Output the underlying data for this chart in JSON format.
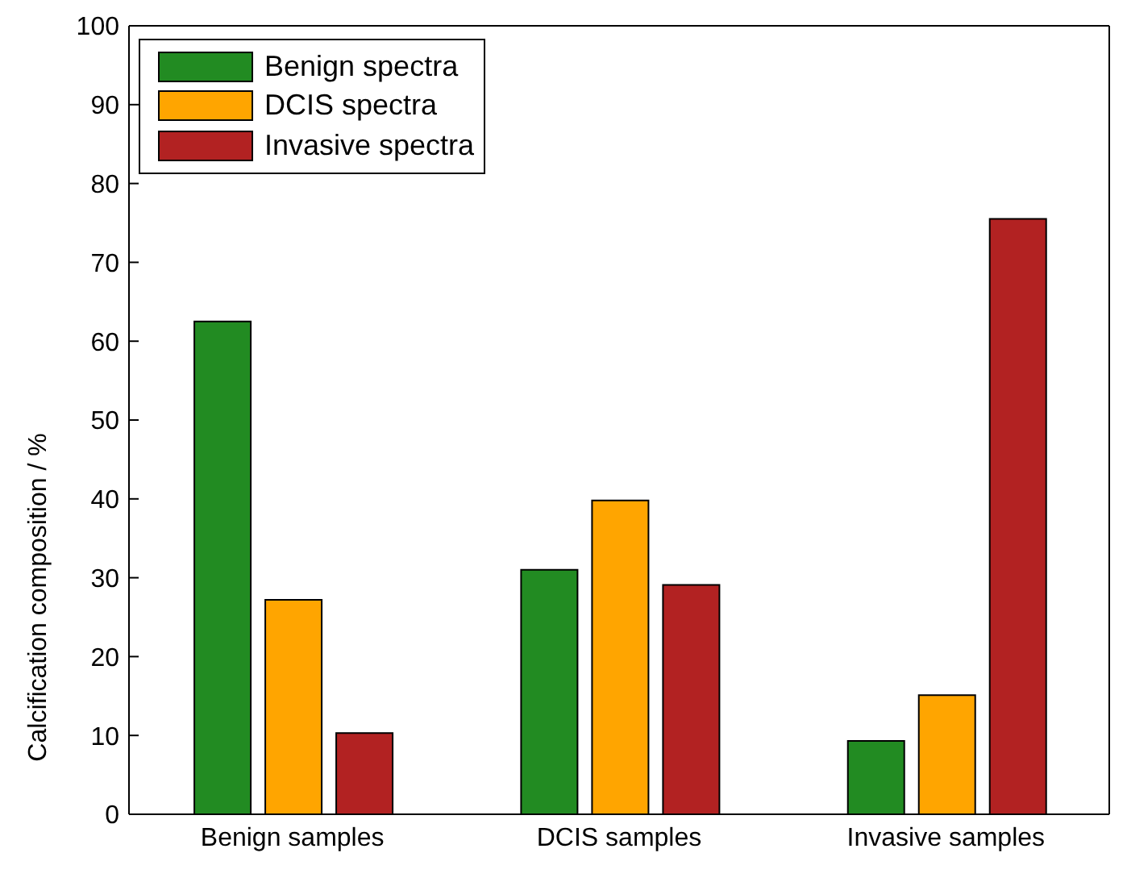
{
  "chart_data": {
    "type": "bar",
    "ylabel": "Calcification composition / %",
    "categories": [
      "Benign samples",
      "DCIS samples",
      "Invasive samples"
    ],
    "series": [
      {
        "name": "Benign spectra",
        "color": "#228b22",
        "values": [
          62.5,
          31.0,
          9.3
        ]
      },
      {
        "name": "DCIS spectra",
        "color": "#ffa500",
        "values": [
          27.2,
          39.8,
          15.1
        ]
      },
      {
        "name": "Invasive spectra",
        "color": "#b22222",
        "values": [
          10.3,
          29.1,
          75.5
        ]
      }
    ],
    "ylim": [
      0,
      100
    ],
    "yticks": [
      0,
      10,
      20,
      30,
      40,
      50,
      60,
      70,
      80,
      90,
      100
    ],
    "grid": false,
    "legend": "top left"
  }
}
